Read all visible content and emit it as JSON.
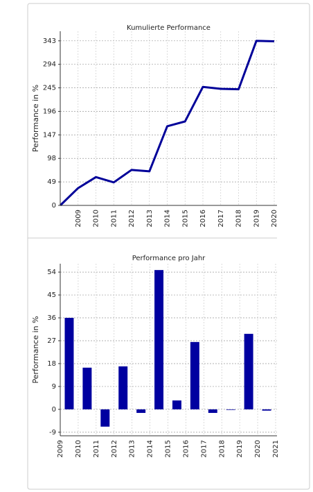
{
  "chart_data": [
    {
      "type": "line",
      "title": "Kumulierte Performance",
      "y_label": "Performance in %",
      "categories": [
        null,
        "2009",
        "2010",
        "2011",
        "2012",
        "2013",
        "2014",
        "2015",
        "2016",
        "2017",
        "2018",
        "2019",
        "2020"
      ],
      "values": [
        0,
        36,
        59,
        48,
        74,
        71,
        165,
        175,
        247,
        243,
        242,
        343,
        342
      ],
      "color": "#000099",
      "ylim": [
        0,
        363
      ],
      "yticks": [
        0,
        49,
        98,
        147,
        196,
        245,
        294,
        343
      ],
      "grid": true
    },
    {
      "type": "bar",
      "title": "Performance pro Jahr",
      "y_label": "Performance in %",
      "xticks": [
        2009,
        2010,
        2011,
        2012,
        2013,
        2014,
        2015,
        2016,
        2017,
        2018,
        2019,
        2020,
        2021
      ],
      "xlim": [
        2009,
        2021
      ],
      "values": [
        36,
        16.4,
        -6.8,
        16.9,
        -1.4,
        54.8,
        3.5,
        26.5,
        -1.4,
        0,
        29.7,
        -0.5
      ],
      "color": "#0000a0",
      "ylim": [
        -10.4,
        57.3
      ],
      "yticks": [
        -9,
        0,
        9,
        18,
        27,
        36,
        45,
        54
      ],
      "grid": true
    }
  ]
}
